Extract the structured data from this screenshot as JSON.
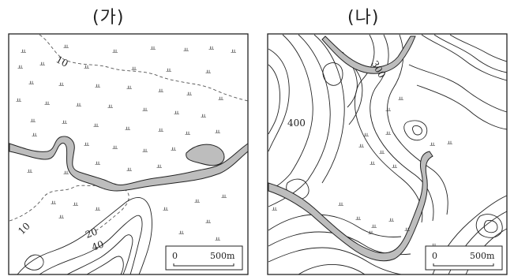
{
  "panels": [
    {
      "title": "(가)",
      "contour_labels": [
        "10",
        "10",
        "20",
        "40"
      ],
      "scale": {
        "zero": "0",
        "distance": "500m"
      },
      "symbol": "ㅛ"
    },
    {
      "title": "(나)",
      "contour_labels": [
        "300",
        "400"
      ],
      "scale": {
        "zero": "0",
        "distance": "500m"
      },
      "symbol": "ㅛ"
    }
  ]
}
